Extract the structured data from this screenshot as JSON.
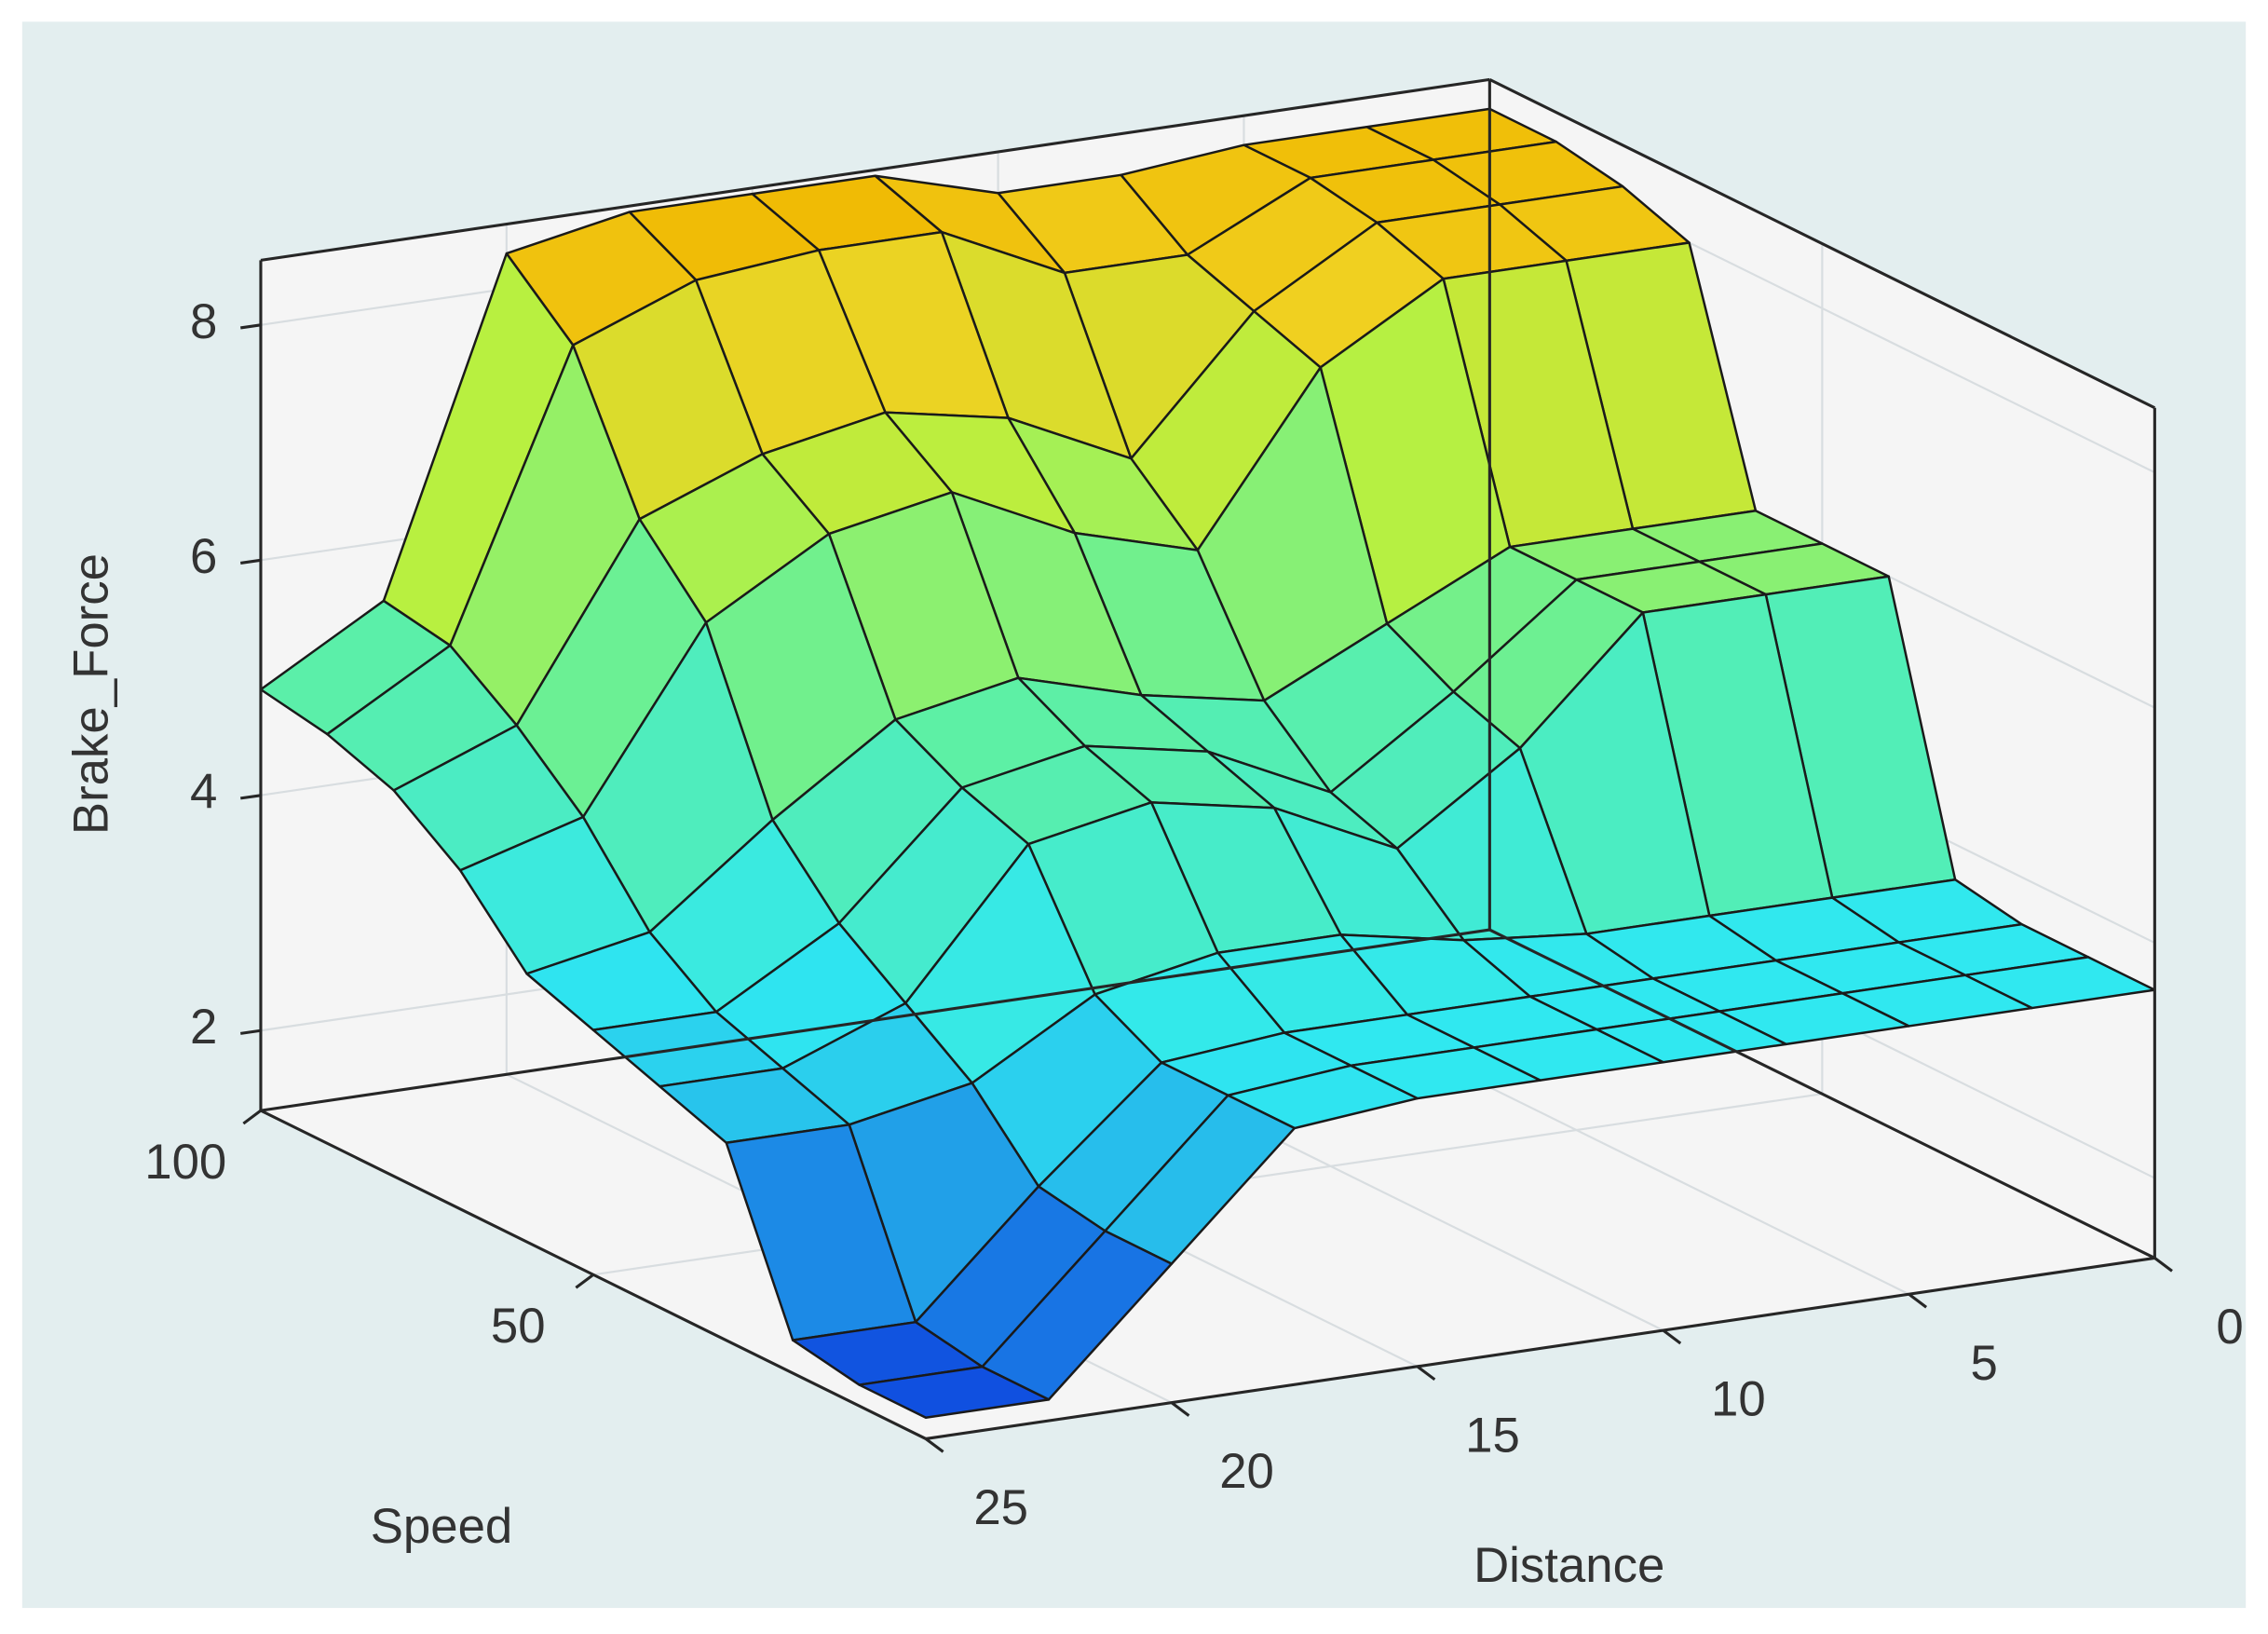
{
  "chart_data": {
    "type": "surface",
    "x_label": "Distance",
    "y_label": "Speed",
    "z_label": "Brake_Force",
    "x": [
      0,
      2.5,
      5,
      7.5,
      10,
      12.5,
      15,
      17.5,
      20,
      22.5,
      25
    ],
    "y": [
      0,
      10,
      20,
      30,
      40,
      50,
      60,
      70,
      80,
      90,
      100
    ],
    "z": [
      [
        3.6,
        3.6,
        3.6,
        3.6,
        3.6,
        3.6,
        3.6,
        3.5,
        2.5,
        1.5,
        1.5
      ],
      [
        3.6,
        3.6,
        3.6,
        3.6,
        3.6,
        3.6,
        3.6,
        3.5,
        2.5,
        1.5,
        1.5
      ],
      [
        3.6,
        3.6,
        3.6,
        3.6,
        3.6,
        3.6,
        3.6,
        3.5,
        2.6,
        1.6,
        1.6
      ],
      [
        3.7,
        3.7,
        3.7,
        3.7,
        3.8,
        4.0,
        4.0,
        3.8,
        3.2,
        3.0,
        3.0
      ],
      [
        6.0,
        6.0,
        6.0,
        5.0,
        4.3,
        4.8,
        5.0,
        4.8,
        3.6,
        3.2,
        3.2
      ],
      [
        6.0,
        6.0,
        6.0,
        5.2,
        4.5,
        5.0,
        5.2,
        5.0,
        4.0,
        3.4,
        3.4
      ],
      [
        6.0,
        6.0,
        6.0,
        5.5,
        5.0,
        5.2,
        5.5,
        5.3,
        4.6,
        3.8,
        3.6
      ],
      [
        8.0,
        8.0,
        8.0,
        7.4,
        6.0,
        6.3,
        6.8,
        6.6,
        6.0,
        4.5,
        4.2
      ],
      [
        8.2,
        8.2,
        8.2,
        7.6,
        6.5,
        7.0,
        7.2,
        7.0,
        6.6,
        5.0,
        4.6
      ],
      [
        8.3,
        8.3,
        8.3,
        7.8,
        7.8,
        8.3,
        8.3,
        8.2,
        7.8,
        5.4,
        4.8
      ],
      [
        8.3,
        8.3,
        8.3,
        8.2,
        8.2,
        8.5,
        8.5,
        8.5,
        8.3,
        5.5,
        4.9
      ]
    ],
    "xlim": [
      0,
      25
    ],
    "ylim": [
      0,
      100
    ],
    "zlim": [
      1.32,
      8.55
    ],
    "xticks": [
      0,
      5,
      10,
      15,
      20,
      25
    ],
    "yticks": [
      50,
      100
    ],
    "zticks": [
      2,
      4,
      6,
      8
    ],
    "colormap": "parula",
    "grid": true
  }
}
